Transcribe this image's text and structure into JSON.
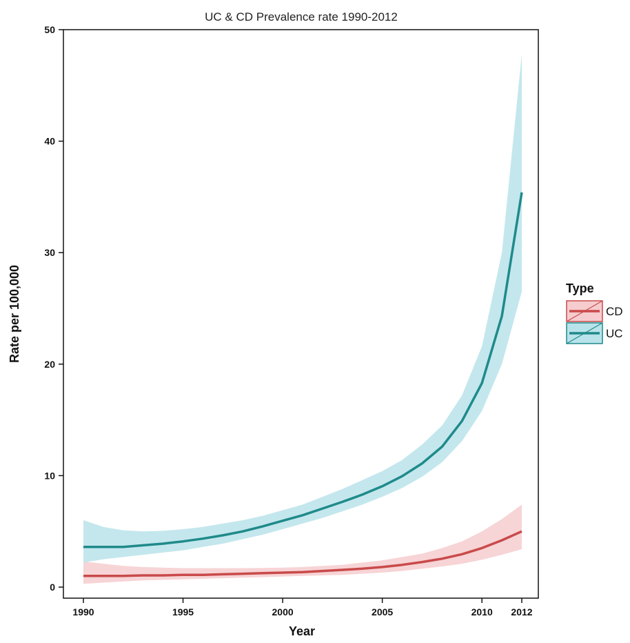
{
  "chart_data": {
    "type": "line",
    "title": "UC & CD Prevalence rate 1990-2012",
    "xlabel": "Year",
    "ylabel": "Rate per 100,000",
    "xlim": [
      1990,
      2012
    ],
    "ylim": [
      0,
      50
    ],
    "x_ticks": [
      1990,
      1995,
      2000,
      2005,
      2010,
      2012
    ],
    "y_ticks": [
      0,
      10,
      20,
      30,
      40,
      50
    ],
    "grid": false,
    "legend": {
      "title": "Type",
      "position": "right"
    },
    "x": [
      1990,
      1991,
      1992,
      1993,
      1994,
      1995,
      1996,
      1997,
      1998,
      1999,
      2000,
      2001,
      2002,
      2003,
      2004,
      2005,
      2006,
      2007,
      2008,
      2009,
      2010,
      2011,
      2012
    ],
    "series": [
      {
        "name": "CD",
        "color": "#c94a4a",
        "band_color": "#f6cccf",
        "values": [
          1.0,
          1.0,
          1.0,
          1.05,
          1.05,
          1.1,
          1.1,
          1.15,
          1.2,
          1.25,
          1.3,
          1.35,
          1.45,
          1.55,
          1.65,
          1.8,
          2.0,
          2.25,
          2.55,
          2.95,
          3.5,
          4.2,
          5.0
        ],
        "lower": [
          0.3,
          0.4,
          0.5,
          0.6,
          0.65,
          0.7,
          0.75,
          0.8,
          0.85,
          0.9,
          0.95,
          1.0,
          1.05,
          1.1,
          1.2,
          1.3,
          1.45,
          1.65,
          1.85,
          2.1,
          2.45,
          2.9,
          3.4
        ],
        "upper": [
          2.3,
          2.1,
          1.9,
          1.8,
          1.75,
          1.7,
          1.7,
          1.7,
          1.7,
          1.72,
          1.75,
          1.8,
          1.9,
          2.0,
          2.2,
          2.4,
          2.7,
          3.0,
          3.5,
          4.1,
          5.0,
          6.1,
          7.4
        ]
      },
      {
        "name": "UC",
        "color": "#1f8a8a",
        "band_color": "#b9e3ea",
        "values": [
          3.6,
          3.6,
          3.6,
          3.75,
          3.9,
          4.1,
          4.35,
          4.65,
          5.0,
          5.45,
          5.95,
          6.45,
          7.05,
          7.65,
          8.3,
          9.05,
          9.95,
          11.1,
          12.6,
          14.9,
          18.3,
          24.3,
          35.4
        ],
        "lower": [
          2.2,
          2.5,
          2.7,
          2.9,
          3.1,
          3.3,
          3.6,
          3.9,
          4.3,
          4.7,
          5.2,
          5.7,
          6.2,
          6.8,
          7.4,
          8.1,
          8.9,
          9.9,
          11.2,
          13.1,
          15.8,
          20.0,
          26.5
        ],
        "upper": [
          6.0,
          5.4,
          5.1,
          5.0,
          5.05,
          5.2,
          5.4,
          5.7,
          6.0,
          6.4,
          6.9,
          7.4,
          8.1,
          8.8,
          9.6,
          10.4,
          11.4,
          12.8,
          14.5,
          17.2,
          21.6,
          30.0,
          47.8
        ]
      }
    ]
  }
}
